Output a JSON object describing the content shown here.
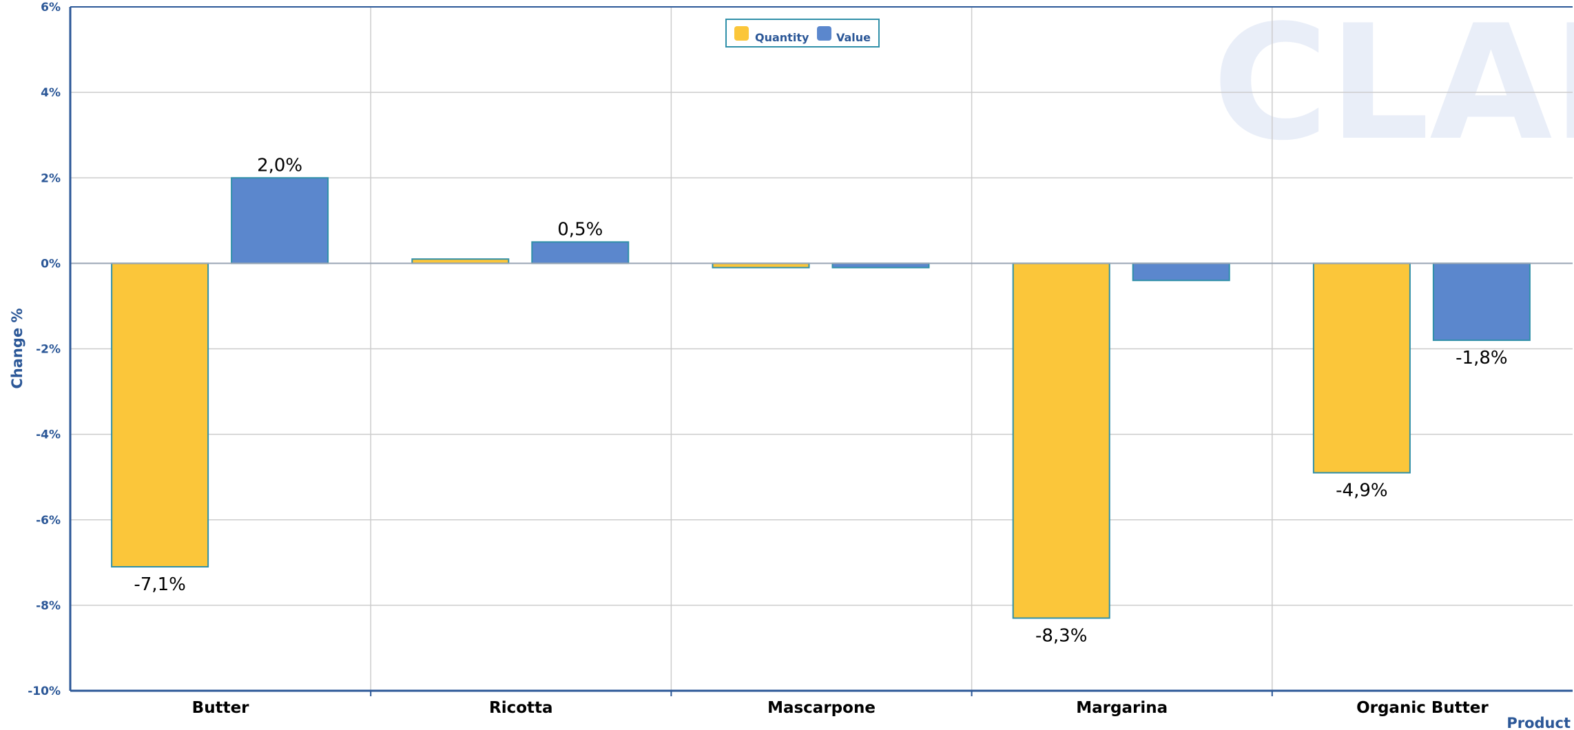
{
  "watermark_text": "CLAL",
  "colors": {
    "quantity": "#FBC63A",
    "value": "#5B87CD",
    "bar_stroke": "#2F8FA8",
    "axis": "#2B5797",
    "grid": "#CCCCCC",
    "watermark": "#E9EEF8"
  },
  "chart_data": {
    "type": "bar",
    "categories": [
      "Butter",
      "Ricotta",
      "Mascarpone",
      "Margarina",
      "Organic Butter"
    ],
    "series": [
      {
        "name": "Quantity",
        "values": [
          -7.1,
          0.1,
          -0.1,
          -8.3,
          -4.9
        ],
        "labels": [
          "-7,1%",
          "",
          "",
          "-8,3%",
          "-4,9%"
        ]
      },
      {
        "name": "Value",
        "values": [
          2.0,
          0.5,
          -0.1,
          -0.4,
          -1.8
        ],
        "labels": [
          "2,0%",
          "0,5%",
          "",
          "",
          "-1,8%"
        ]
      }
    ],
    "ylabel": "Change %",
    "xlabel": "Product",
    "ylim": [
      -10,
      6
    ],
    "yticks": [
      6,
      4,
      2,
      0,
      -2,
      -4,
      -6,
      -8,
      -10
    ],
    "ytick_labels": [
      "6%",
      "4%",
      "2%",
      "0%",
      "-2%",
      "-4%",
      "-6%",
      "-8%",
      "-10%"
    ],
    "grid": true,
    "legend_position": "top-center"
  }
}
